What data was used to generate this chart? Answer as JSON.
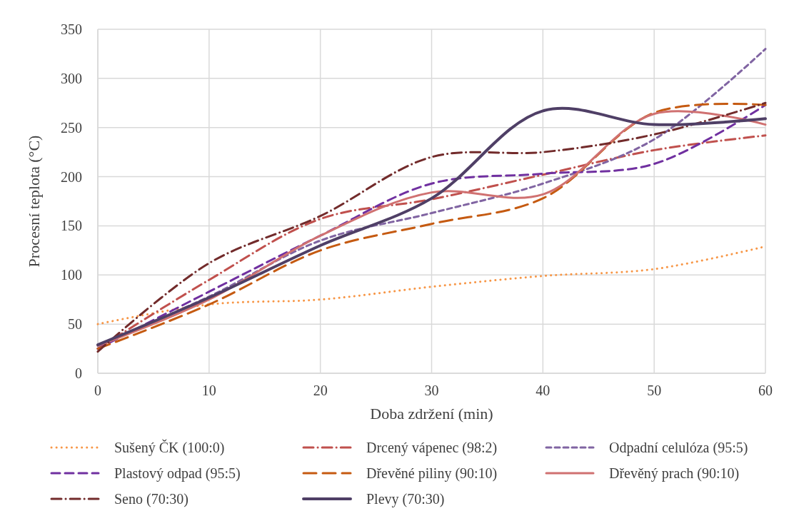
{
  "chart_data": {
    "type": "line",
    "xlabel": "Doba zdržení (min)",
    "ylabel": "Procesní teplota (°C)",
    "x": [
      0,
      10,
      20,
      30,
      40,
      50,
      60
    ],
    "xlim": [
      0,
      60
    ],
    "xticks": [
      0,
      10,
      20,
      30,
      40,
      50,
      60
    ],
    "ylim": [
      0,
      350
    ],
    "yticks": [
      0,
      50,
      100,
      150,
      200,
      250,
      300,
      350
    ],
    "grid": true,
    "legend": "bottom",
    "series": [
      {
        "name": "Sušený ČK (100:0)",
        "color": "#f79646",
        "line_style": "dotted",
        "values": [
          50,
          70,
          75,
          88,
          99,
          106,
          129
        ]
      },
      {
        "name": "Drcený vápenec (98:2)",
        "color": "#c0504d",
        "line_style": "dashdot",
        "values": [
          25,
          95,
          157,
          177,
          202,
          227,
          242
        ]
      },
      {
        "name": "Odpadní celulóza (95:5)",
        "color": "#8064a2",
        "line_style": "dashed",
        "values": [
          28,
          78,
          135,
          163,
          193,
          238,
          330
        ]
      },
      {
        "name": "Plastový odpad (95:5)",
        "color": "#7030a0",
        "line_style": "dashed",
        "values": [
          25,
          83,
          140,
          193,
          203,
          213,
          273
        ]
      },
      {
        "name": "Dřevěné piliny (90:10)",
        "color": "#c55a11",
        "line_style": "dashed",
        "values": [
          25,
          70,
          125,
          152,
          178,
          265,
          273
        ]
      },
      {
        "name": "Dřevěný prach (90:10)",
        "color": "#d07171",
        "line_style": "solid",
        "values": [
          28,
          75,
          140,
          184,
          182,
          264,
          253
        ]
      },
      {
        "name": "Seno (70:30)",
        "color": "#722b2b",
        "line_style": "dashdot",
        "values": [
          22,
          112,
          160,
          220,
          225,
          243,
          275
        ]
      },
      {
        "name": "Plevy (70:30)",
        "color": "#4f3f66",
        "line_style": "solid",
        "values": [
          29,
          77,
          130,
          178,
          267,
          253,
          259
        ]
      }
    ]
  }
}
